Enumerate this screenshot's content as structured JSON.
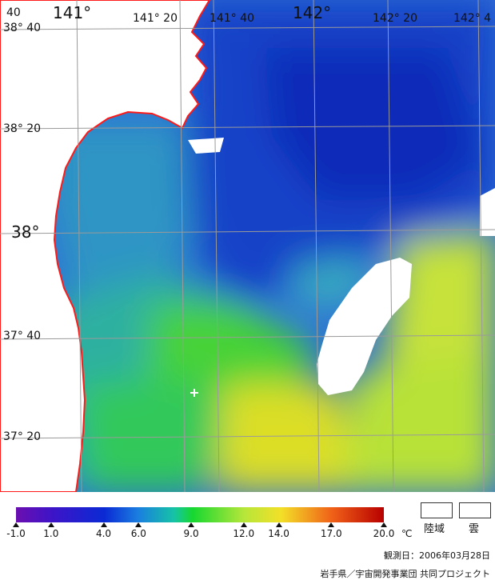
{
  "lon_labels": {
    "l1": "141°",
    "l2": "141° 20",
    "l3": "141° 40",
    "l4": "142°",
    "l5": "142° 20",
    "l6": "142° 4"
  },
  "lat_labels": {
    "a1": "38° 40",
    "a2": "38° 20",
    "a3": "38°",
    "a4": "37° 40",
    "a5": "37° 20"
  },
  "corner_label": "40",
  "scale": {
    "ticks": [
      "-1.0",
      "1.0",
      "4.0",
      "6.0",
      "9.0",
      "12.0",
      "14.0",
      "17.0",
      "20.0"
    ],
    "tick_values": [
      -1.0,
      1.0,
      4.0,
      6.0,
      9.0,
      12.0,
      14.0,
      17.0,
      20.0
    ],
    "min": -1.0,
    "max": 20.0,
    "unit": "℃"
  },
  "legend": {
    "land": "陸域",
    "cloud": "雲"
  },
  "observation": "観測日：2006年03月28日",
  "credit": "岩手県／宇宙開発事業団 共同プロジェクト",
  "colors": {
    "coast": "#ff1a1a",
    "grid": "#9a9a9a"
  }
}
